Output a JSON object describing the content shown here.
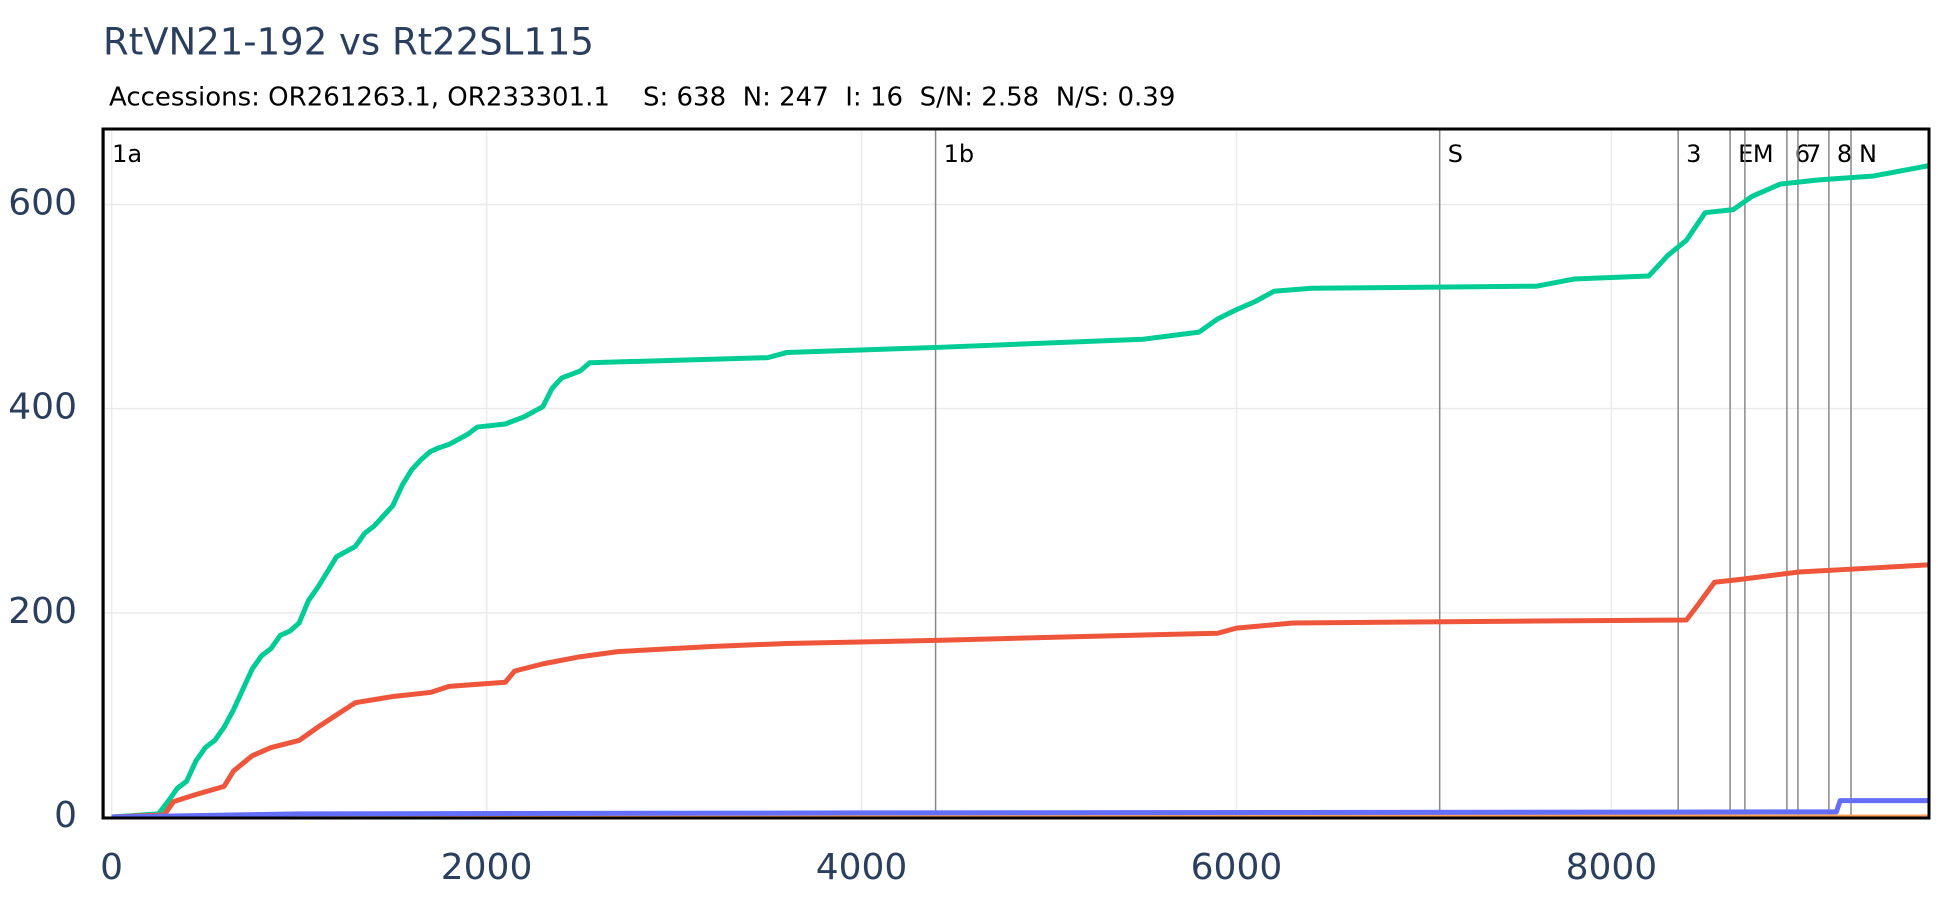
{
  "chart_data": {
    "type": "line",
    "title": "RtVN21-192 vs Rt22SL115",
    "subtitle": "Accessions: OR261263.1, OR233301.1    S: 638  N: 247  I: 16  S/N: 2.58  N/S: 0.39",
    "xlim": [
      -46,
      9694
    ],
    "ylim": [
      -1,
      674
    ],
    "xticks": [
      0,
      2000,
      4000,
      6000,
      8000
    ],
    "yticks": [
      0,
      200,
      400,
      600
    ],
    "grid": true,
    "regions": [
      {
        "label": "1a",
        "x": -40
      },
      {
        "label": "1b",
        "x": 4395
      },
      {
        "label": "S",
        "x": 7084
      },
      {
        "label": "3",
        "x": 8356
      },
      {
        "label": "E",
        "x": 8633
      },
      {
        "label": "M",
        "x": 8712
      },
      {
        "label": "6",
        "x": 8936
      },
      {
        "label": "7",
        "x": 8995
      },
      {
        "label": "8",
        "x": 9160
      },
      {
        "label": "N",
        "x": 9278
      }
    ],
    "series": [
      {
        "color": "#00cc96",
        "x": [
          0,
          250,
          300,
          350,
          400,
          450,
          500,
          550,
          600,
          650,
          700,
          750,
          800,
          850,
          900,
          950,
          1000,
          1050,
          1100,
          1150,
          1200,
          1250,
          1300,
          1350,
          1400,
          1450,
          1500,
          1550,
          1600,
          1650,
          1700,
          1750,
          1800,
          1900,
          1950,
          2100,
          2200,
          2300,
          2350,
          2400,
          2500,
          2550,
          3500,
          3600,
          4400,
          5500,
          5800,
          5900,
          6000,
          6100,
          6200,
          6400,
          7600,
          7800,
          8200,
          8300,
          8400,
          8500,
          8650,
          8750,
          8900,
          9100,
          9400,
          9690
        ],
        "values": [
          0,
          3,
          15,
          28,
          35,
          55,
          68,
          75,
          88,
          105,
          125,
          145,
          158,
          165,
          178,
          182,
          190,
          212,
          225,
          240,
          255,
          260,
          265,
          278,
          285,
          295,
          305,
          325,
          340,
          350,
          358,
          362,
          365,
          375,
          382,
          385,
          392,
          402,
          420,
          430,
          437,
          445,
          450,
          455,
          460,
          468,
          475,
          488,
          497,
          505,
          515,
          518,
          520,
          527,
          530,
          550,
          565,
          592,
          595,
          608,
          620,
          624,
          628,
          638
        ]
      },
      {
        "color": "#ef553b",
        "x": [
          0,
          280,
          330,
          450,
          600,
          650,
          750,
          850,
          1000,
          1100,
          1200,
          1300,
          1500,
          1700,
          1800,
          2100,
          2150,
          2300,
          2500,
          2700,
          3200,
          3600,
          4400,
          5000,
          5900,
          6000,
          6300,
          7600,
          8400,
          8450,
          8550,
          8700,
          9000,
          9300,
          9690
        ],
        "values": [
          0,
          2,
          15,
          22,
          30,
          45,
          60,
          68,
          75,
          88,
          100,
          112,
          118,
          122,
          128,
          132,
          143,
          150,
          157,
          162,
          167,
          170,
          173,
          176,
          180,
          185,
          190,
          192,
          193,
          205,
          230,
          233,
          240,
          243,
          247
        ]
      },
      {
        "color": "#ffa15a",
        "x": [
          0,
          9690
        ],
        "values": [
          0,
          0
        ]
      },
      {
        "color": "#636efa",
        "x": [
          0,
          1000,
          4000,
          9200,
          9220,
          9690
        ],
        "values": [
          0,
          3,
          4,
          5,
          16,
          16
        ]
      }
    ]
  }
}
